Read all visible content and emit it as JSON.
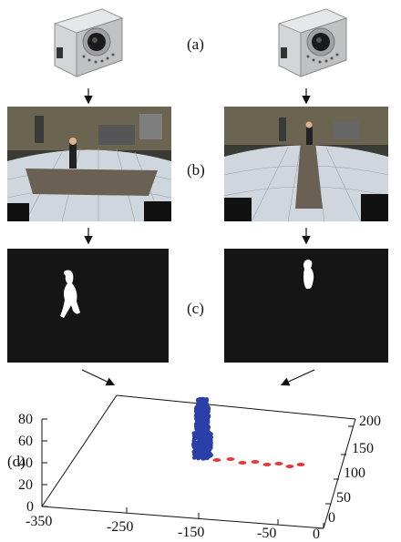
{
  "labels": {
    "a": "(a)",
    "b": "(b)",
    "c": "(c)",
    "d": "(d)"
  },
  "cameras": [
    {
      "id": "left",
      "icon": "ip-camera-icon",
      "body_color": "#c9cbcc",
      "lens_color": "#1a1a1a"
    },
    {
      "id": "right",
      "icon": "ip-camera-icon",
      "body_color": "#c9cbcc",
      "lens_color": "#1a1a1a"
    }
  ],
  "frames": [
    {
      "id": "left",
      "icon": "room-scene-icon"
    },
    {
      "id": "right",
      "icon": "room-scene-icon"
    }
  ],
  "masks": [
    {
      "id": "left",
      "icon": "foreground-silhouette-icon",
      "bg": "#151515",
      "fg": "#ffffff"
    },
    {
      "id": "right",
      "icon": "foreground-silhouette-icon",
      "bg": "#151515",
      "fg": "#ffffff"
    }
  ],
  "chart_data": {
    "type": "scatter",
    "dimensions": 3,
    "x_ticks": [
      "-350",
      "-250",
      "-150",
      "-50",
      "0"
    ],
    "y_ticks": [
      "0",
      "50",
      "100",
      "150",
      "200"
    ],
    "z_ticks": [
      "0",
      "20",
      "40",
      "60",
      "80"
    ],
    "grid": false,
    "series": [
      {
        "color": "#2b3fa8",
        "marker": "volumetric-body-points"
      },
      {
        "color": "#e23a3a",
        "marker": "footprint-trajectory-points"
      }
    ]
  }
}
